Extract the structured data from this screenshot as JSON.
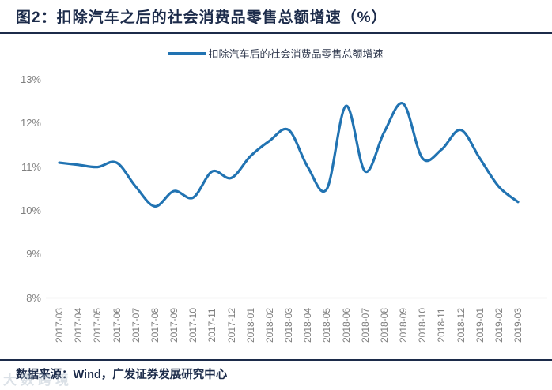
{
  "header": {
    "title": "图2：扣除汽车之后的社会消费品零售总额增速（%）"
  },
  "legend": {
    "label": "扣除汽车后的社会消费品零售总额增速"
  },
  "chart_data": {
    "type": "line",
    "title": "扣除汽车之后的社会消费品零售总额增速（%）",
    "categories": [
      "2017-03",
      "2017-04",
      "2017-05",
      "2017-06",
      "2017-07",
      "2017-08",
      "2017-09",
      "2017-10",
      "2017-11",
      "2017-12",
      "2018-01",
      "2018-02",
      "2018-03",
      "2018-04",
      "2018-05",
      "2018-06",
      "2018-07",
      "2018-08",
      "2018-09",
      "2018-10",
      "2018-11",
      "2018-12",
      "2019-01",
      "2019-02",
      "2019-03"
    ],
    "series": [
      {
        "name": "扣除汽车后的社会消费品零售总额增速",
        "values": [
          11.1,
          11.05,
          11.0,
          11.1,
          10.55,
          10.1,
          10.45,
          10.3,
          10.9,
          10.75,
          11.25,
          11.6,
          11.85,
          11.0,
          10.5,
          12.4,
          10.9,
          11.8,
          12.45,
          11.2,
          11.4,
          11.85,
          11.2,
          10.55,
          10.2
        ]
      }
    ],
    "ylim": [
      8,
      13
    ],
    "ytick_values": [
      13,
      12,
      11,
      10,
      9,
      8
    ],
    "ytick_labels": [
      "13%",
      "12%",
      "11%",
      "10%",
      "9%",
      "8%"
    ],
    "grid": false,
    "legend_position": "top"
  },
  "footer": {
    "source": "数据来源：Wind，广发证券发展研究中心"
  },
  "watermark": {
    "text": "大数跨境"
  },
  "colors": {
    "line": "#2173b2",
    "navy": "#1c2b4a",
    "tick_gray": "#7f7f7f",
    "axis_line": "#d6d6d6"
  }
}
